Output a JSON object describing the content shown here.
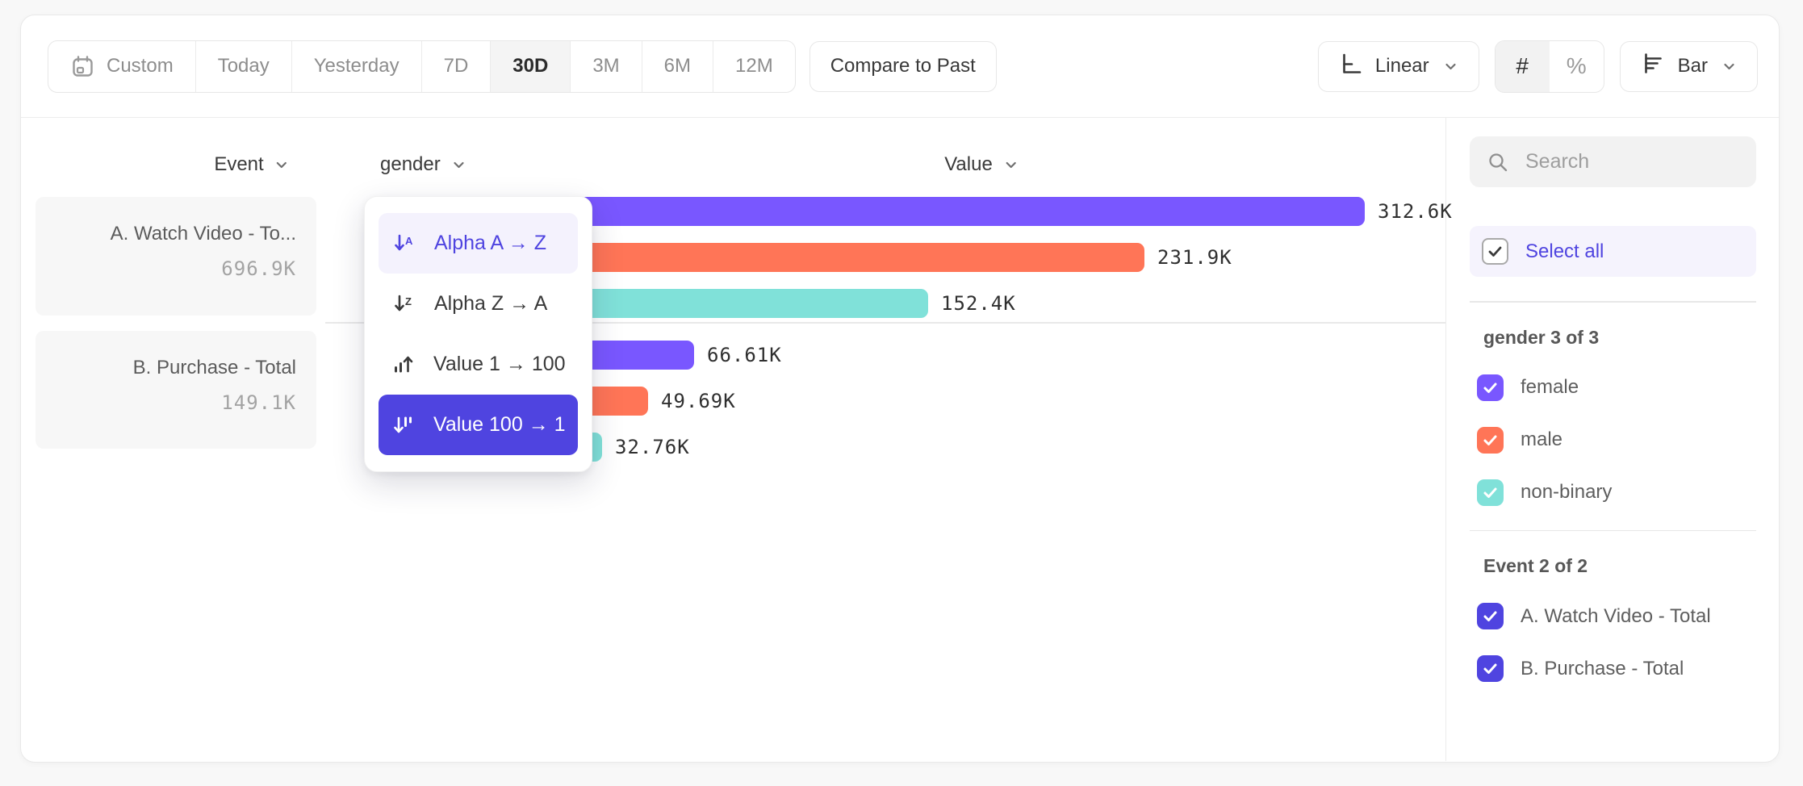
{
  "colors": {
    "accent": "#4F44E0",
    "accent_soft_bg": "#F4F2FD",
    "purple": "#7957FF",
    "coral": "#FF7557",
    "teal": "#80E1D9"
  },
  "toolbar": {
    "date_ranges": [
      "Custom",
      "Today",
      "Yesterday",
      "7D",
      "30D",
      "3M",
      "6M",
      "12M"
    ],
    "selected_range": "30D",
    "compare_label": "Compare to Past",
    "scale_label": "Linear",
    "number_symbol": "#",
    "percent_symbol": "%",
    "selected_format": "#",
    "chart_type_label": "Bar"
  },
  "chart": {
    "header": {
      "event": "Event",
      "group": "gender",
      "value": "Value"
    },
    "events": [
      {
        "label": "A. Watch Video - To...",
        "total": "696.9K"
      },
      {
        "label": "B. Purchase - Total",
        "total": "149.1K"
      }
    ]
  },
  "chart_data": {
    "type": "bar",
    "orientation": "horizontal",
    "categories": [
      "female",
      "male",
      "non-binary"
    ],
    "series": [
      {
        "name": "A. Watch Video - Total",
        "total": 696900,
        "total_label": "696.9K",
        "values": [
          312600,
          231900,
          152400
        ],
        "labels": [
          "312.6K",
          "231.9K",
          "152.4K"
        ]
      },
      {
        "name": "B. Purchase - Total",
        "total": 149100,
        "total_label": "149.1K",
        "values": [
          66610,
          49690,
          32760
        ],
        "labels": [
          "66.61K",
          "49.69K",
          "32.76K"
        ]
      }
    ],
    "colors": {
      "female": "#7957FF",
      "male": "#FF7557",
      "non-binary": "#80E1D9"
    },
    "max_value": 312600,
    "sort": "Value 100 → 1",
    "grid": false,
    "legend": false
  },
  "sort_menu": {
    "items": [
      {
        "label": "Alpha A → Z",
        "icon": "sort-alpha-asc-icon",
        "state": "hover"
      },
      {
        "label": "Alpha Z → A",
        "icon": "sort-alpha-desc-icon",
        "state": ""
      },
      {
        "label": "Value 1 → 100",
        "icon": "sort-value-asc-icon",
        "state": ""
      },
      {
        "label": "Value 100 → 1",
        "icon": "sort-value-desc-icon",
        "state": "selected"
      }
    ]
  },
  "sidebar": {
    "search_placeholder": "Search",
    "select_all_label": "Select all",
    "sections": [
      {
        "title": "gender 3 of 3",
        "items": [
          {
            "label": "female",
            "color": "#7957FF",
            "checked": true
          },
          {
            "label": "male",
            "color": "#FF7557",
            "checked": true
          },
          {
            "label": "non-binary",
            "color": "#80E1D9",
            "checked": true
          }
        ]
      },
      {
        "title": "Event 2 of 2",
        "items": [
          {
            "label": "A. Watch Video - Total",
            "color": "#4F44E0",
            "checked": true
          },
          {
            "label": "B. Purchase - Total",
            "color": "#4F44E0",
            "checked": true
          }
        ]
      }
    ]
  }
}
